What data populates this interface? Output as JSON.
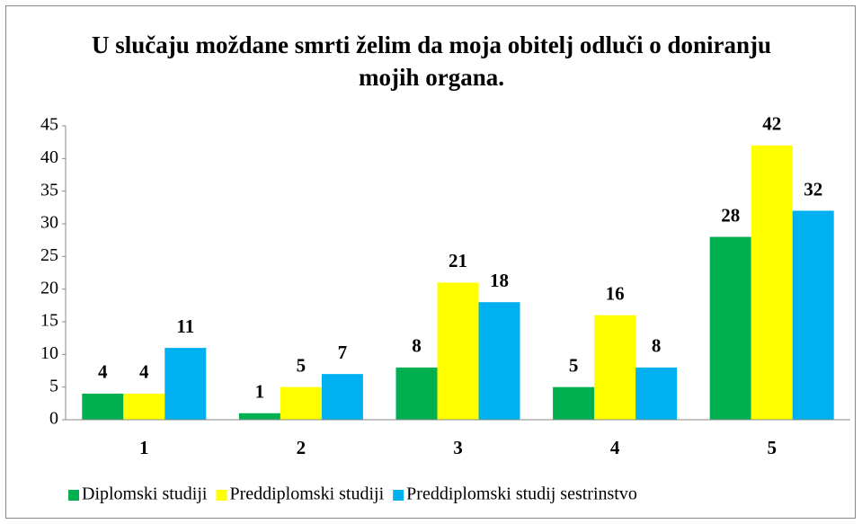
{
  "chart_data": {
    "type": "bar",
    "title": "U slučaju moždane smrti želim da moja obitelj odluči o doniranju mojih organa.",
    "categories": [
      "1",
      "2",
      "3",
      "4",
      "5"
    ],
    "series": [
      {
        "name": "Diplomski studiji",
        "color": "#00b050",
        "values": [
          4,
          1,
          8,
          5,
          28
        ]
      },
      {
        "name": "Preddiplomski studiji",
        "color": "#ffff00",
        "values": [
          4,
          5,
          21,
          16,
          42
        ]
      },
      {
        "name": "Preddiplomski studij sestrinstvo",
        "color": "#00b0f0",
        "values": [
          11,
          7,
          18,
          8,
          32
        ]
      }
    ],
    "ylim": [
      0,
      45
    ],
    "yticks": [
      0,
      5,
      10,
      15,
      20,
      25,
      30,
      35,
      40,
      45
    ],
    "grid": false,
    "legend": "bottom"
  }
}
